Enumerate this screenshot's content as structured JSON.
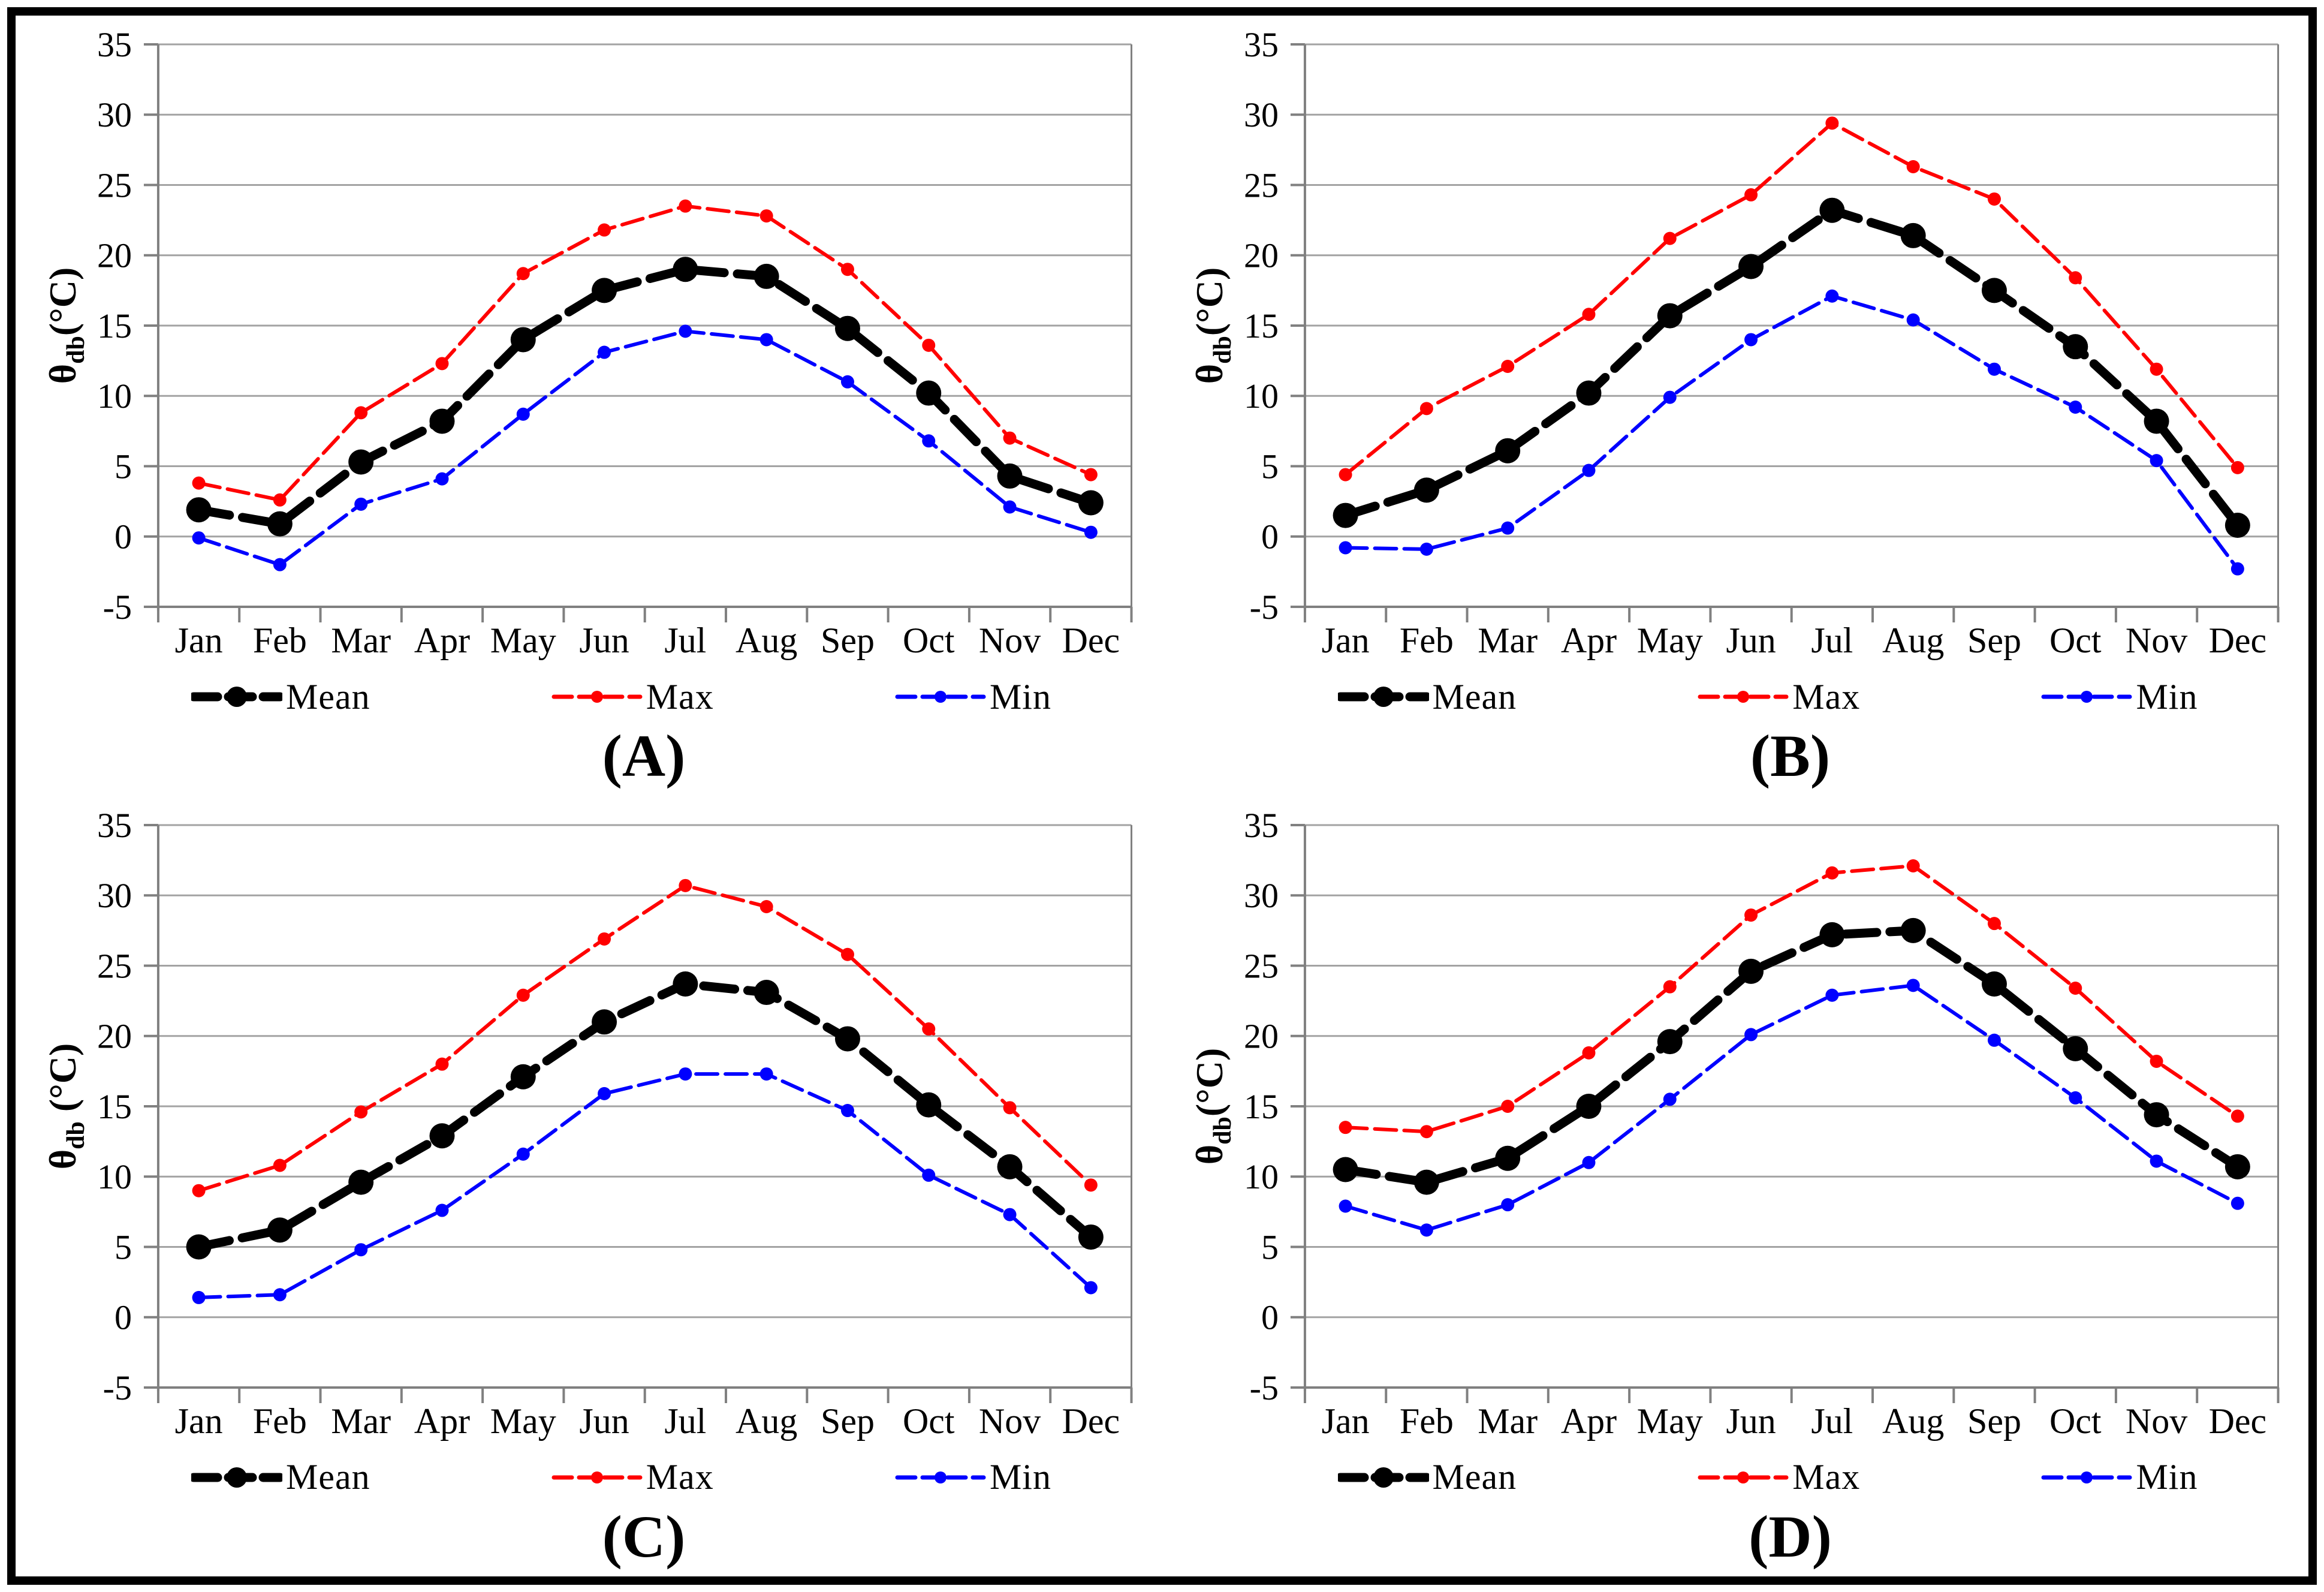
{
  "figure": {
    "background": "#FFFFFF",
    "border_color": "#000000",
    "panel_count": 4
  },
  "colors": {
    "mean": "#000000",
    "max": "#FF0000",
    "min": "#0000FF",
    "gridline": "#A3A3A3",
    "axis": "#808080",
    "tick_label": "#000000"
  },
  "chart_data": [
    {
      "type": "line",
      "panel_label": "(A)",
      "categories": [
        "Jan",
        "Feb",
        "Mar",
        "Apr",
        "May",
        "Jun",
        "Jul",
        "Aug",
        "Sep",
        "Oct",
        "Nov",
        "Dec"
      ],
      "ylabel": {
        "symbol": "θ",
        "subscript": "db",
        "unit": "(°C)"
      },
      "ylim": [
        -5,
        35
      ],
      "ytick_step": 5,
      "grid": true,
      "legend_position": "bottom",
      "series": [
        {
          "name": "Mean",
          "color": "#000000",
          "emphasis": true,
          "values": [
            1.9,
            0.9,
            5.3,
            8.2,
            14.0,
            17.5,
            19.0,
            18.5,
            14.8,
            10.2,
            4.3,
            2.4
          ]
        },
        {
          "name": "Max",
          "color": "#FF0000",
          "emphasis": false,
          "values": [
            3.8,
            2.6,
            8.8,
            12.3,
            18.7,
            21.8,
            23.5,
            22.8,
            19.0,
            13.6,
            7.0,
            4.4
          ]
        },
        {
          "name": "Min",
          "color": "#0000FF",
          "emphasis": false,
          "values": [
            -0.1,
            -2.0,
            2.3,
            4.1,
            8.7,
            13.1,
            14.6,
            14.0,
            11.0,
            6.8,
            2.1,
            0.3
          ]
        }
      ]
    },
    {
      "type": "line",
      "panel_label": "(B)",
      "categories": [
        "Jan",
        "Feb",
        "Mar",
        "Apr",
        "May",
        "Jun",
        "Jul",
        "Aug",
        "Sep",
        "Oct",
        "Nov",
        "Dec"
      ],
      "ylabel": {
        "symbol": "θ",
        "subscript": "db",
        "unit": "(°C)"
      },
      "ylim": [
        -5,
        35
      ],
      "ytick_step": 5,
      "grid": true,
      "legend_position": "bottom",
      "series": [
        {
          "name": "Mean",
          "color": "#000000",
          "emphasis": true,
          "values": [
            1.5,
            3.3,
            6.1,
            10.2,
            15.7,
            19.2,
            23.2,
            21.4,
            17.5,
            13.5,
            8.2,
            0.8
          ]
        },
        {
          "name": "Max",
          "color": "#FF0000",
          "emphasis": false,
          "values": [
            4.4,
            9.1,
            12.1,
            15.8,
            21.2,
            24.3,
            29.4,
            26.3,
            24.0,
            18.4,
            11.9,
            4.9
          ]
        },
        {
          "name": "Min",
          "color": "#0000FF",
          "emphasis": false,
          "values": [
            -0.8,
            -0.9,
            0.6,
            4.7,
            9.9,
            14.0,
            17.1,
            15.4,
            11.9,
            9.2,
            5.4,
            -2.3
          ]
        }
      ]
    },
    {
      "type": "line",
      "panel_label": "(C)",
      "categories": [
        "Jan",
        "Feb",
        "Mar",
        "Apr",
        "May",
        "Jun",
        "Jul",
        "Aug",
        "Sep",
        "Oct",
        "Nov",
        "Dec"
      ],
      "ylabel": {
        "symbol": "θ",
        "subscript": "db",
        "unit": " (°C)"
      },
      "ylim": [
        -5,
        35
      ],
      "ytick_step": 5,
      "grid": true,
      "legend_position": "bottom",
      "series": [
        {
          "name": "Mean",
          "color": "#000000",
          "emphasis": true,
          "values": [
            5.0,
            6.2,
            9.6,
            12.9,
            17.1,
            21.0,
            23.7,
            23.1,
            19.8,
            15.1,
            10.7,
            5.7
          ]
        },
        {
          "name": "Max",
          "color": "#FF0000",
          "emphasis": false,
          "values": [
            9.0,
            10.8,
            14.6,
            18.0,
            22.9,
            26.9,
            30.7,
            29.2,
            25.8,
            20.5,
            14.9,
            9.4
          ]
        },
        {
          "name": "Min",
          "color": "#0000FF",
          "emphasis": false,
          "values": [
            1.4,
            1.6,
            4.8,
            7.6,
            11.6,
            15.9,
            17.3,
            17.3,
            14.7,
            10.1,
            7.3,
            2.1
          ]
        }
      ]
    },
    {
      "type": "line",
      "panel_label": "(D)",
      "categories": [
        "Jan",
        "Feb",
        "Mar",
        "Apr",
        "May",
        "Jun",
        "Jul",
        "Aug",
        "Sep",
        "Oct",
        "Nov",
        "Dec"
      ],
      "ylabel": {
        "symbol": "θ",
        "subscript": "db",
        "unit": "(°C)"
      },
      "ylim": [
        -5,
        35
      ],
      "ytick_step": 5,
      "grid": true,
      "legend_position": "bottom",
      "series": [
        {
          "name": "Mean",
          "color": "#000000",
          "emphasis": true,
          "values": [
            10.5,
            9.6,
            11.3,
            15.0,
            19.6,
            24.6,
            27.2,
            27.5,
            23.7,
            19.1,
            14.4,
            10.7
          ]
        },
        {
          "name": "Max",
          "color": "#FF0000",
          "emphasis": false,
          "values": [
            13.5,
            13.2,
            15.0,
            18.8,
            23.5,
            28.6,
            31.6,
            32.1,
            28.0,
            23.4,
            18.2,
            14.3
          ]
        },
        {
          "name": "Min",
          "color": "#0000FF",
          "emphasis": false,
          "values": [
            7.9,
            6.2,
            8.0,
            11.0,
            15.5,
            20.1,
            22.9,
            23.6,
            19.7,
            15.6,
            11.1,
            8.1
          ]
        }
      ]
    }
  ]
}
